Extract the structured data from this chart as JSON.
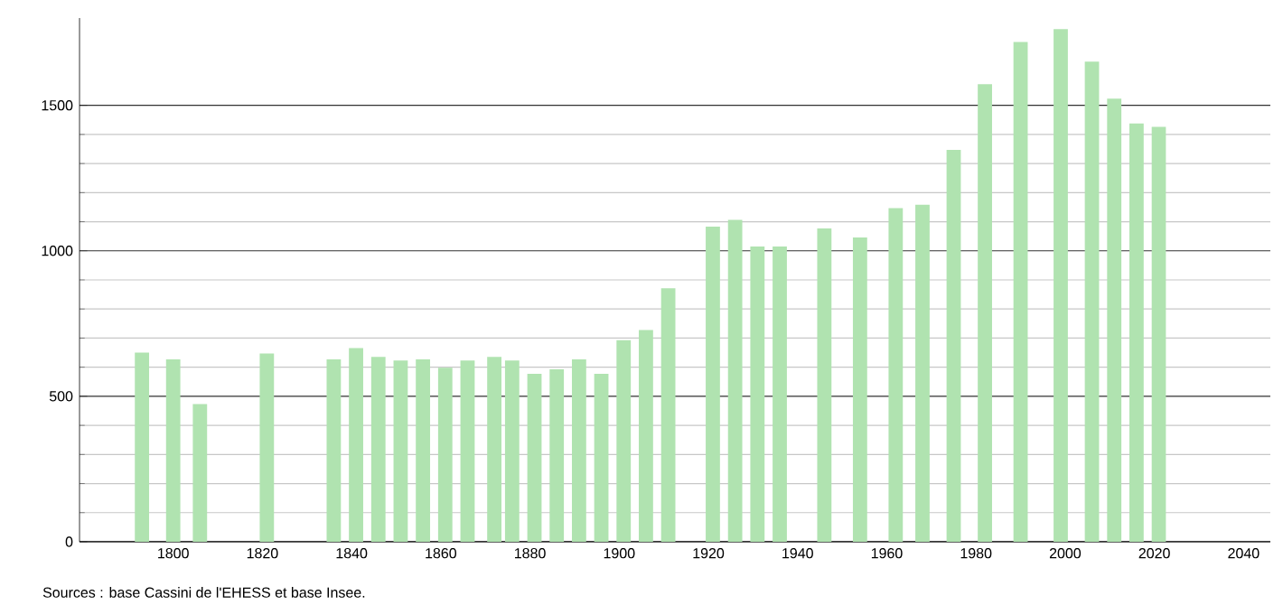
{
  "chart_data": {
    "type": "bar",
    "x": [
      1793,
      1800,
      1806,
      1821,
      1836,
      1841,
      1846,
      1851,
      1856,
      1861,
      1866,
      1872,
      1876,
      1881,
      1886,
      1891,
      1896,
      1901,
      1906,
      1911,
      1921,
      1926,
      1931,
      1936,
      1946,
      1954,
      1962,
      1968,
      1975,
      1982,
      1990,
      1999,
      2006,
      2011,
      2016,
      2021
    ],
    "values": [
      650,
      627,
      473,
      647,
      627,
      666,
      635,
      623,
      627,
      598,
      623,
      635,
      623,
      577,
      593,
      627,
      577,
      693,
      728,
      871,
      1083,
      1106,
      1015,
      1015,
      1077,
      1046,
      1147,
      1158,
      1347,
      1573,
      1718,
      1762,
      1650,
      1523,
      1438,
      1426
    ],
    "color": "#b0e3b0",
    "xlim": [
      1779,
      2046
    ],
    "ylim": [
      0,
      1800
    ],
    "xticks": [
      1800,
      1820,
      1840,
      1860,
      1880,
      1900,
      1920,
      1940,
      1960,
      1980,
      2000,
      2020,
      2040
    ],
    "yticks": [
      0,
      500,
      1000,
      1500
    ],
    "grid": "y",
    "annotations": [
      "Sources : base Cassini de l'EHESS et base Insee."
    ]
  }
}
